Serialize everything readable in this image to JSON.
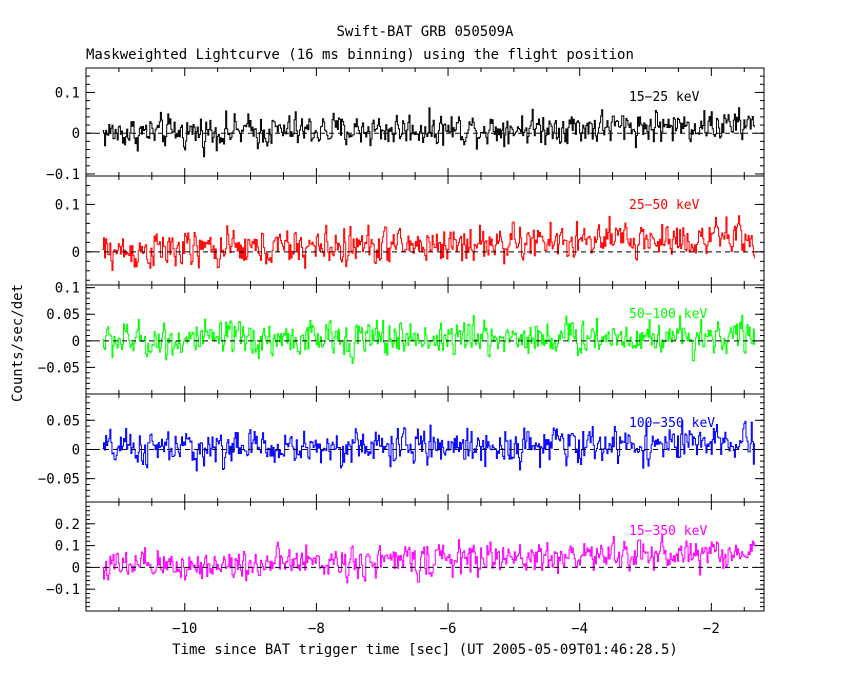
{
  "chart_data": {
    "type": "line",
    "title": "Swift-BAT GRB 050509A",
    "subtitle": "Maskweighted Lightcurve (16 ms binning) using the flight position",
    "xlabel": "Time since BAT trigger time [sec] (UT 2005-05-09T01:46:28.5)",
    "ylabel": "Counts/sec/det",
    "xlim": [
      -11.5,
      -1.2
    ],
    "x_ticks": [
      -10,
      -8,
      -6,
      -4,
      -2
    ],
    "x_tick_labels": [
      "−10",
      "−8",
      "−6",
      "−4",
      "−2"
    ],
    "x_start": -11.25,
    "x_end": -1.35,
    "bin_width": 0.016,
    "grid": false,
    "zero_line": "dashed",
    "panels": [
      {
        "band": "15−25 keV",
        "color": "#000000",
        "ylim": [
          -0.105,
          0.16
        ],
        "y_ticks": [
          -0.1,
          0,
          0.1
        ],
        "y_tick_labels": [
          "−0.1",
          "0",
          "0.1"
        ],
        "noise_amplitude": 0.035,
        "trend_start": 0.0,
        "trend_end": 0.02
      },
      {
        "band": "25−50 keV",
        "color": "#ff0000",
        "ylim": [
          -0.07,
          0.16
        ],
        "y_ticks": [
          0,
          0.1
        ],
        "y_tick_labels": [
          "0",
          "0.1"
        ],
        "noise_amplitude": 0.035,
        "trend_start": 0.0,
        "trend_end": 0.03
      },
      {
        "band": "50−100 keV",
        "color": "#00ff00",
        "ylim": [
          -0.1,
          0.105
        ],
        "y_ticks": [
          -0.05,
          0,
          0.05,
          0.1
        ],
        "y_tick_labels": [
          "−0.05",
          "0",
          "0.05",
          "0.1"
        ],
        "noise_amplitude": 0.03,
        "trend_start": 0.0,
        "trend_end": 0.01
      },
      {
        "band": "100−350 keV",
        "color": "#0000ff",
        "ylim": [
          -0.09,
          0.095
        ],
        "y_ticks": [
          -0.05,
          0,
          0.05
        ],
        "y_tick_labels": [
          "−0.05",
          "0",
          "0.05"
        ],
        "noise_amplitude": 0.027,
        "trend_start": 0.0,
        "trend_end": 0.01
      },
      {
        "band": "15−350 keV",
        "color": "#ff00ff",
        "ylim": [
          -0.2,
          0.3
        ],
        "y_ticks": [
          -0.1,
          0,
          0.1,
          0.2
        ],
        "y_tick_labels": [
          "−0.1",
          "0",
          "0.1",
          "0.2"
        ],
        "noise_amplitude": 0.065,
        "trend_start": 0.0,
        "trend_end": 0.07
      }
    ]
  }
}
